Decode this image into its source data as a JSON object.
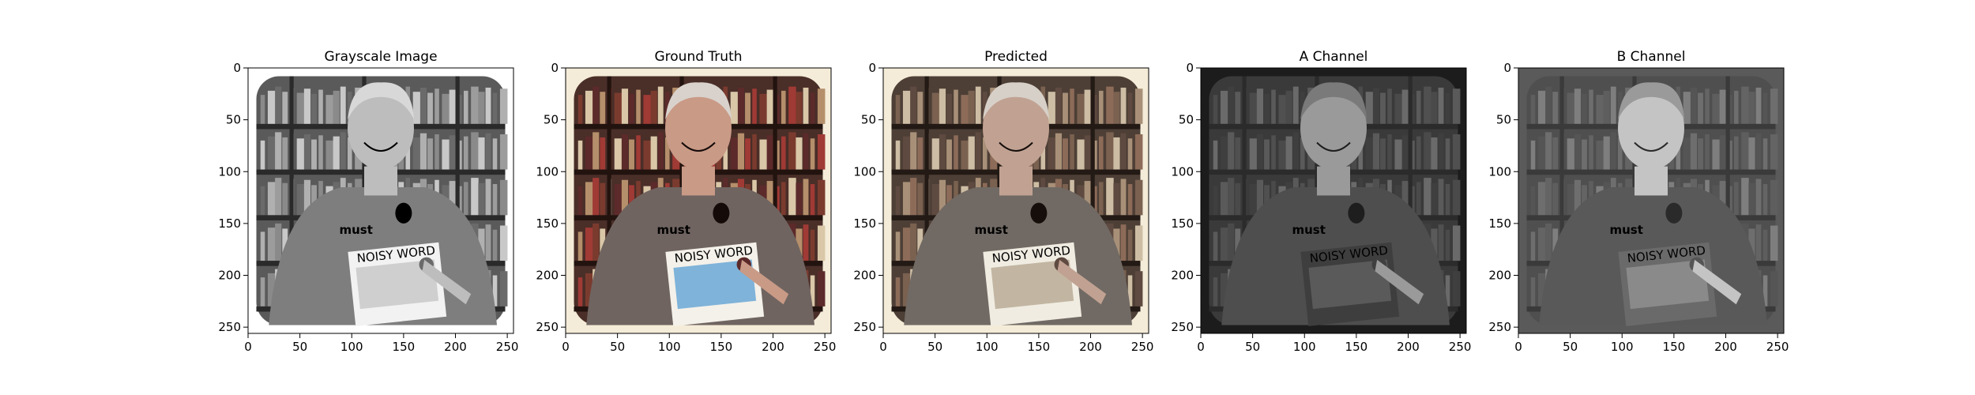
{
  "panels": [
    {
      "id": "grayscale",
      "title": "Grayscale Image",
      "mode": "gray"
    },
    {
      "id": "ground-truth",
      "title": "Ground Truth",
      "mode": "color"
    },
    {
      "id": "predicted",
      "title": "Predicted",
      "mode": "muted"
    },
    {
      "id": "a-channel",
      "title": "A Channel",
      "mode": "achannel"
    },
    {
      "id": "b-channel",
      "title": "B Channel",
      "mode": "bchannel"
    }
  ],
  "axis": {
    "x_ticks": [
      "0",
      "50",
      "100",
      "150",
      "200",
      "250"
    ],
    "y_ticks": [
      "0",
      "50",
      "100",
      "150",
      "200",
      "250"
    ]
  },
  "image_content": {
    "shirt_text": "must",
    "book_title": "NOISY WORD"
  }
}
